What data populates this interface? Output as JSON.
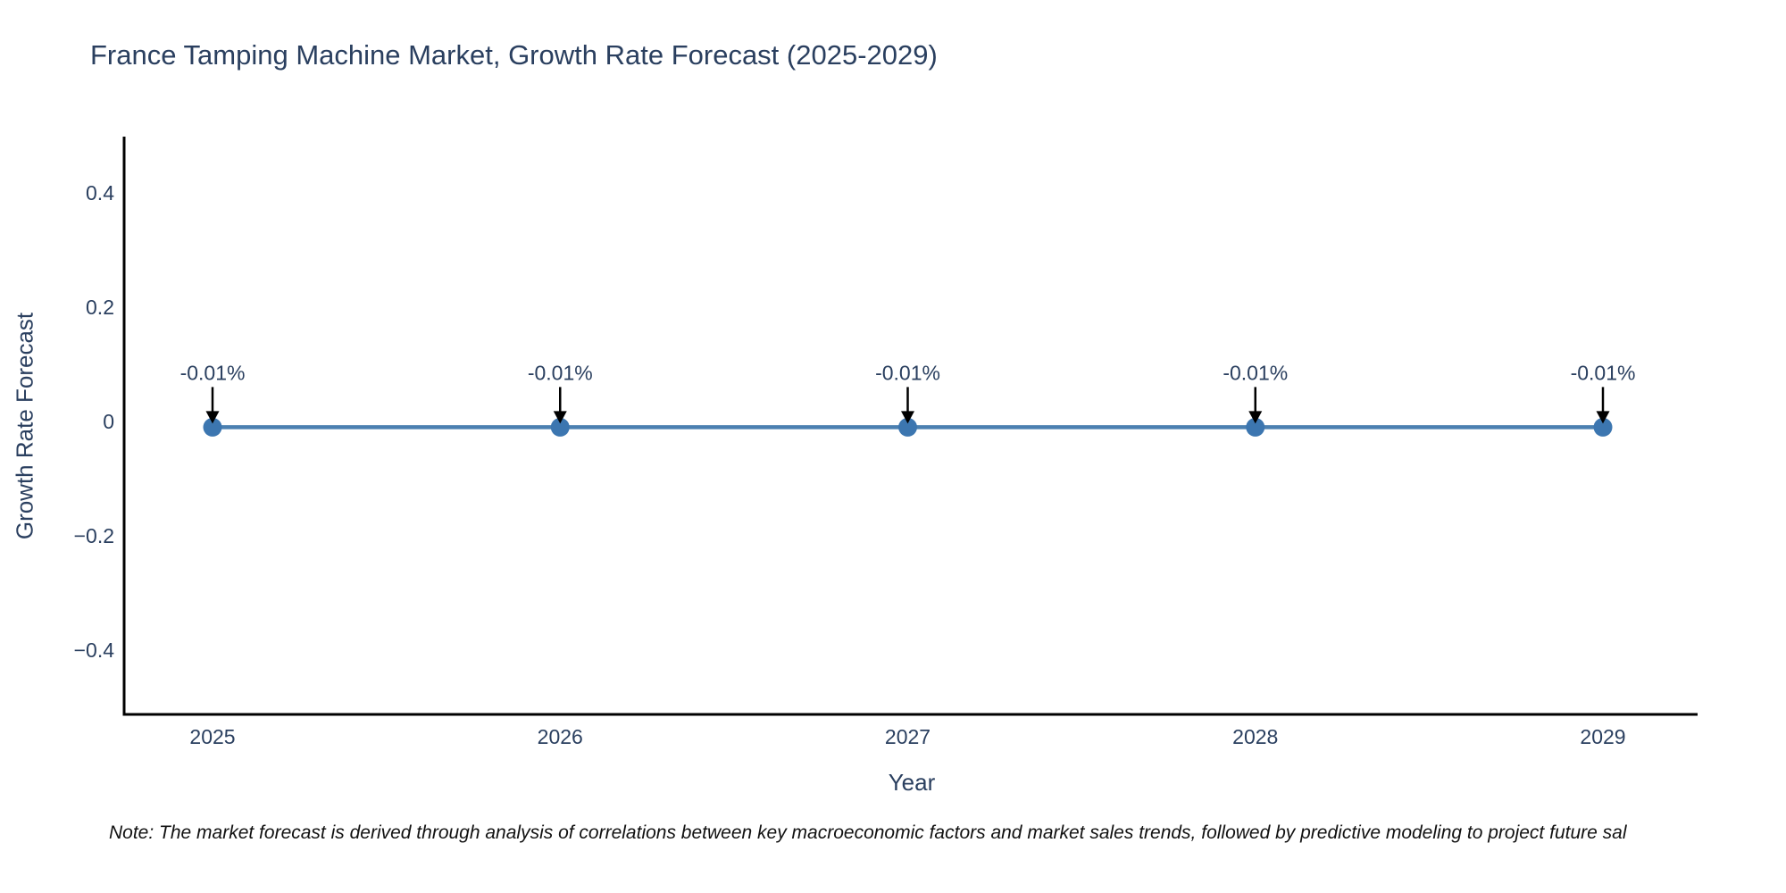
{
  "chart_data": {
    "type": "line",
    "title": "France Tamping Machine Market, Growth Rate Forecast (2025-2029)",
    "xlabel": "Year",
    "ylabel": "Growth Rate Forecast",
    "categories": [
      "2025",
      "2026",
      "2027",
      "2028",
      "2029"
    ],
    "series": [
      {
        "name": "Growth Rate Forecast",
        "values": [
          -0.01,
          -0.01,
          -0.01,
          -0.01,
          -0.01
        ]
      }
    ],
    "point_labels": [
      "-0.01%",
      "-0.01%",
      "-0.01%",
      "-0.01%",
      "-0.01%"
    ],
    "ytick_values": [
      0.4,
      0.2,
      0,
      -0.2,
      -0.4
    ],
    "ytick_labels": [
      "0.4",
      "0.2",
      "0",
      "−0.2",
      "−0.4"
    ],
    "ylim": [
      -0.51,
      0.5
    ],
    "grid": false,
    "legend_position": "none",
    "colors": {
      "line": "#4b80b1",
      "marker": "#3c76b0",
      "axis": "#000000",
      "arrow": "#000000",
      "text": "#2a3f5f"
    }
  },
  "footnote": "Note: The market forecast is derived through analysis of correlations between key macroeconomic factors and market sales trends, followed by predictive modeling to project future sal"
}
